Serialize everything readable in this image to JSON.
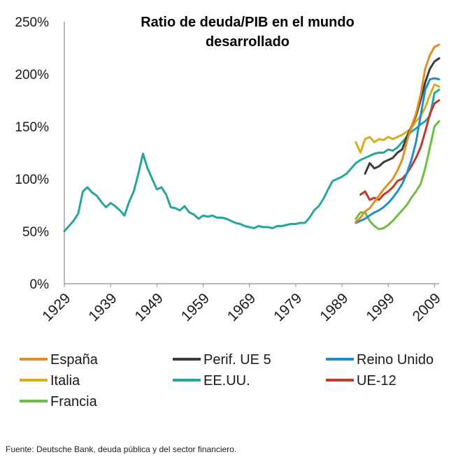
{
  "chart_data": {
    "type": "line",
    "title_lines": [
      "Ratio de deuda/PIB en el mundo",
      "desarrollado"
    ],
    "xlabel": "",
    "ylabel": "",
    "xlim": [
      1929,
      2010
    ],
    "ylim": [
      0,
      250
    ],
    "y_ticks": [
      "0%",
      "50%",
      "100%",
      "150%",
      "200%",
      "250%"
    ],
    "y_tick_values": [
      0,
      50,
      100,
      150,
      200,
      250
    ],
    "x_ticks": [
      "1929",
      "1939",
      "1949",
      "1959",
      "1969",
      "1979",
      "1989",
      "1999",
      "2009"
    ],
    "x_tick_values": [
      1929,
      1939,
      1949,
      1959,
      1969,
      1979,
      1989,
      1999,
      2009
    ],
    "grid": false,
    "legend_position": "bottom",
    "series": [
      {
        "name": "España",
        "color": "#E08E26",
        "x": [
          1992,
          1993,
          1994,
          1995,
          1996,
          1997,
          1998,
          1999,
          2000,
          2001,
          2002,
          2003,
          2004,
          2005,
          2006,
          2007,
          2008,
          2009,
          2010
        ],
        "y": [
          59,
          63,
          69,
          72,
          78,
          84,
          90,
          95,
          100,
          108,
          118,
          135,
          150,
          162,
          180,
          205,
          218,
          226,
          228
        ]
      },
      {
        "name": "Perif. UE 5",
        "color": "#3C3C3C",
        "x": [
          1994,
          1995,
          1996,
          1997,
          1998,
          1999,
          2000,
          2001,
          2002,
          2003,
          2004,
          2005,
          2006,
          2007,
          2008,
          2009,
          2010
        ],
        "y": [
          105,
          115,
          110,
          112,
          116,
          118,
          120,
          125,
          128,
          140,
          150,
          160,
          175,
          192,
          205,
          212,
          215
        ]
      },
      {
        "name": "Reino Unido",
        "color": "#1F8FCB",
        "x": [
          1992,
          1993,
          1994,
          1995,
          1996,
          1997,
          1998,
          1999,
          2000,
          2001,
          2002,
          2003,
          2004,
          2005,
          2006,
          2007,
          2008,
          2009,
          2010
        ],
        "y": [
          58,
          60,
          62,
          65,
          68,
          70,
          73,
          77,
          82,
          88,
          95,
          105,
          118,
          135,
          160,
          185,
          195,
          196,
          195
        ]
      },
      {
        "name": "Italia",
        "color": "#D8AE1E",
        "x": [
          1992,
          1993,
          1994,
          1995,
          1996,
          1997,
          1998,
          1999,
          2000,
          2001,
          2002,
          2003,
          2004,
          2005,
          2006,
          2007,
          2008,
          2009,
          2010
        ],
        "y": [
          135,
          125,
          138,
          140,
          135,
          138,
          137,
          140,
          138,
          140,
          142,
          145,
          148,
          155,
          160,
          168,
          180,
          190,
          188
        ]
      },
      {
        "name": "EE.UU.",
        "color": "#26A69A",
        "x": [
          1929,
          1930,
          1931,
          1932,
          1933,
          1934,
          1935,
          1936,
          1937,
          1938,
          1939,
          1940,
          1941,
          1942,
          1943,
          1944,
          1945,
          1946,
          1947,
          1948,
          1949,
          1950,
          1951,
          1952,
          1953,
          1954,
          1955,
          1956,
          1957,
          1958,
          1959,
          1960,
          1961,
          1962,
          1963,
          1964,
          1965,
          1966,
          1967,
          1968,
          1969,
          1970,
          1971,
          1972,
          1973,
          1974,
          1975,
          1976,
          1977,
          1978,
          1979,
          1980,
          1981,
          1982,
          1983,
          1984,
          1985,
          1986,
          1987,
          1988,
          1989,
          1990,
          1991,
          1992,
          1993,
          1994,
          1995,
          1996,
          1997,
          1998,
          1999,
          2000,
          2001,
          2002,
          2003,
          2004,
          2005,
          2006,
          2007,
          2008,
          2009,
          2010
        ],
        "y": [
          50,
          55,
          60,
          67,
          88,
          92,
          87,
          84,
          78,
          73,
          77,
          74,
          70,
          65,
          78,
          88,
          105,
          124,
          110,
          100,
          90,
          92,
          85,
          73,
          72,
          70,
          74,
          68,
          66,
          62,
          65,
          64,
          65,
          63,
          63,
          62,
          60,
          58,
          57,
          55,
          54,
          53,
          55,
          54,
          54,
          53,
          55,
          55,
          56,
          57,
          57,
          58,
          58,
          63,
          70,
          74,
          81,
          90,
          98,
          100,
          102,
          105,
          110,
          115,
          118,
          120,
          122,
          124,
          125,
          125,
          128,
          127,
          130,
          135,
          140,
          145,
          148,
          152,
          155,
          160,
          182,
          185
        ]
      },
      {
        "name": "UE-12",
        "color": "#C0392B",
        "x": [
          1993,
          1994,
          1995,
          1996,
          1997,
          1998,
          1999,
          2000,
          2001,
          2002,
          2003,
          2004,
          2005,
          2006,
          2007,
          2008,
          2009,
          2010
        ],
        "y": [
          85,
          88,
          80,
          82,
          80,
          85,
          88,
          92,
          98,
          100,
          105,
          112,
          120,
          130,
          145,
          162,
          172,
          175
        ]
      },
      {
        "name": "Francia",
        "color": "#6DBE3C",
        "x": [
          1992,
          1993,
          1994,
          1995,
          1996,
          1997,
          1998,
          1999,
          2000,
          2001,
          2002,
          2003,
          2004,
          2005,
          2006,
          2007,
          2008,
          2009,
          2010
        ],
        "y": [
          62,
          68,
          68,
          60,
          55,
          52,
          53,
          56,
          60,
          65,
          70,
          75,
          82,
          88,
          95,
          110,
          130,
          150,
          155
        ]
      }
    ]
  },
  "legend": [
    {
      "label": "España",
      "color": "#E08E26"
    },
    {
      "label": "Perif. UE 5",
      "color": "#3C3C3C"
    },
    {
      "label": "Reino Unido",
      "color": "#1F8FCB"
    },
    {
      "label": "Italia",
      "color": "#D8AE1E"
    },
    {
      "label": "EE.UU.",
      "color": "#26A69A"
    },
    {
      "label": "UE-12",
      "color": "#C0392B"
    },
    {
      "label": "Francia",
      "color": "#6DBE3C"
    }
  ],
  "source": "Fuente: Deutsche Bank, deuda pública y del sector financiero."
}
